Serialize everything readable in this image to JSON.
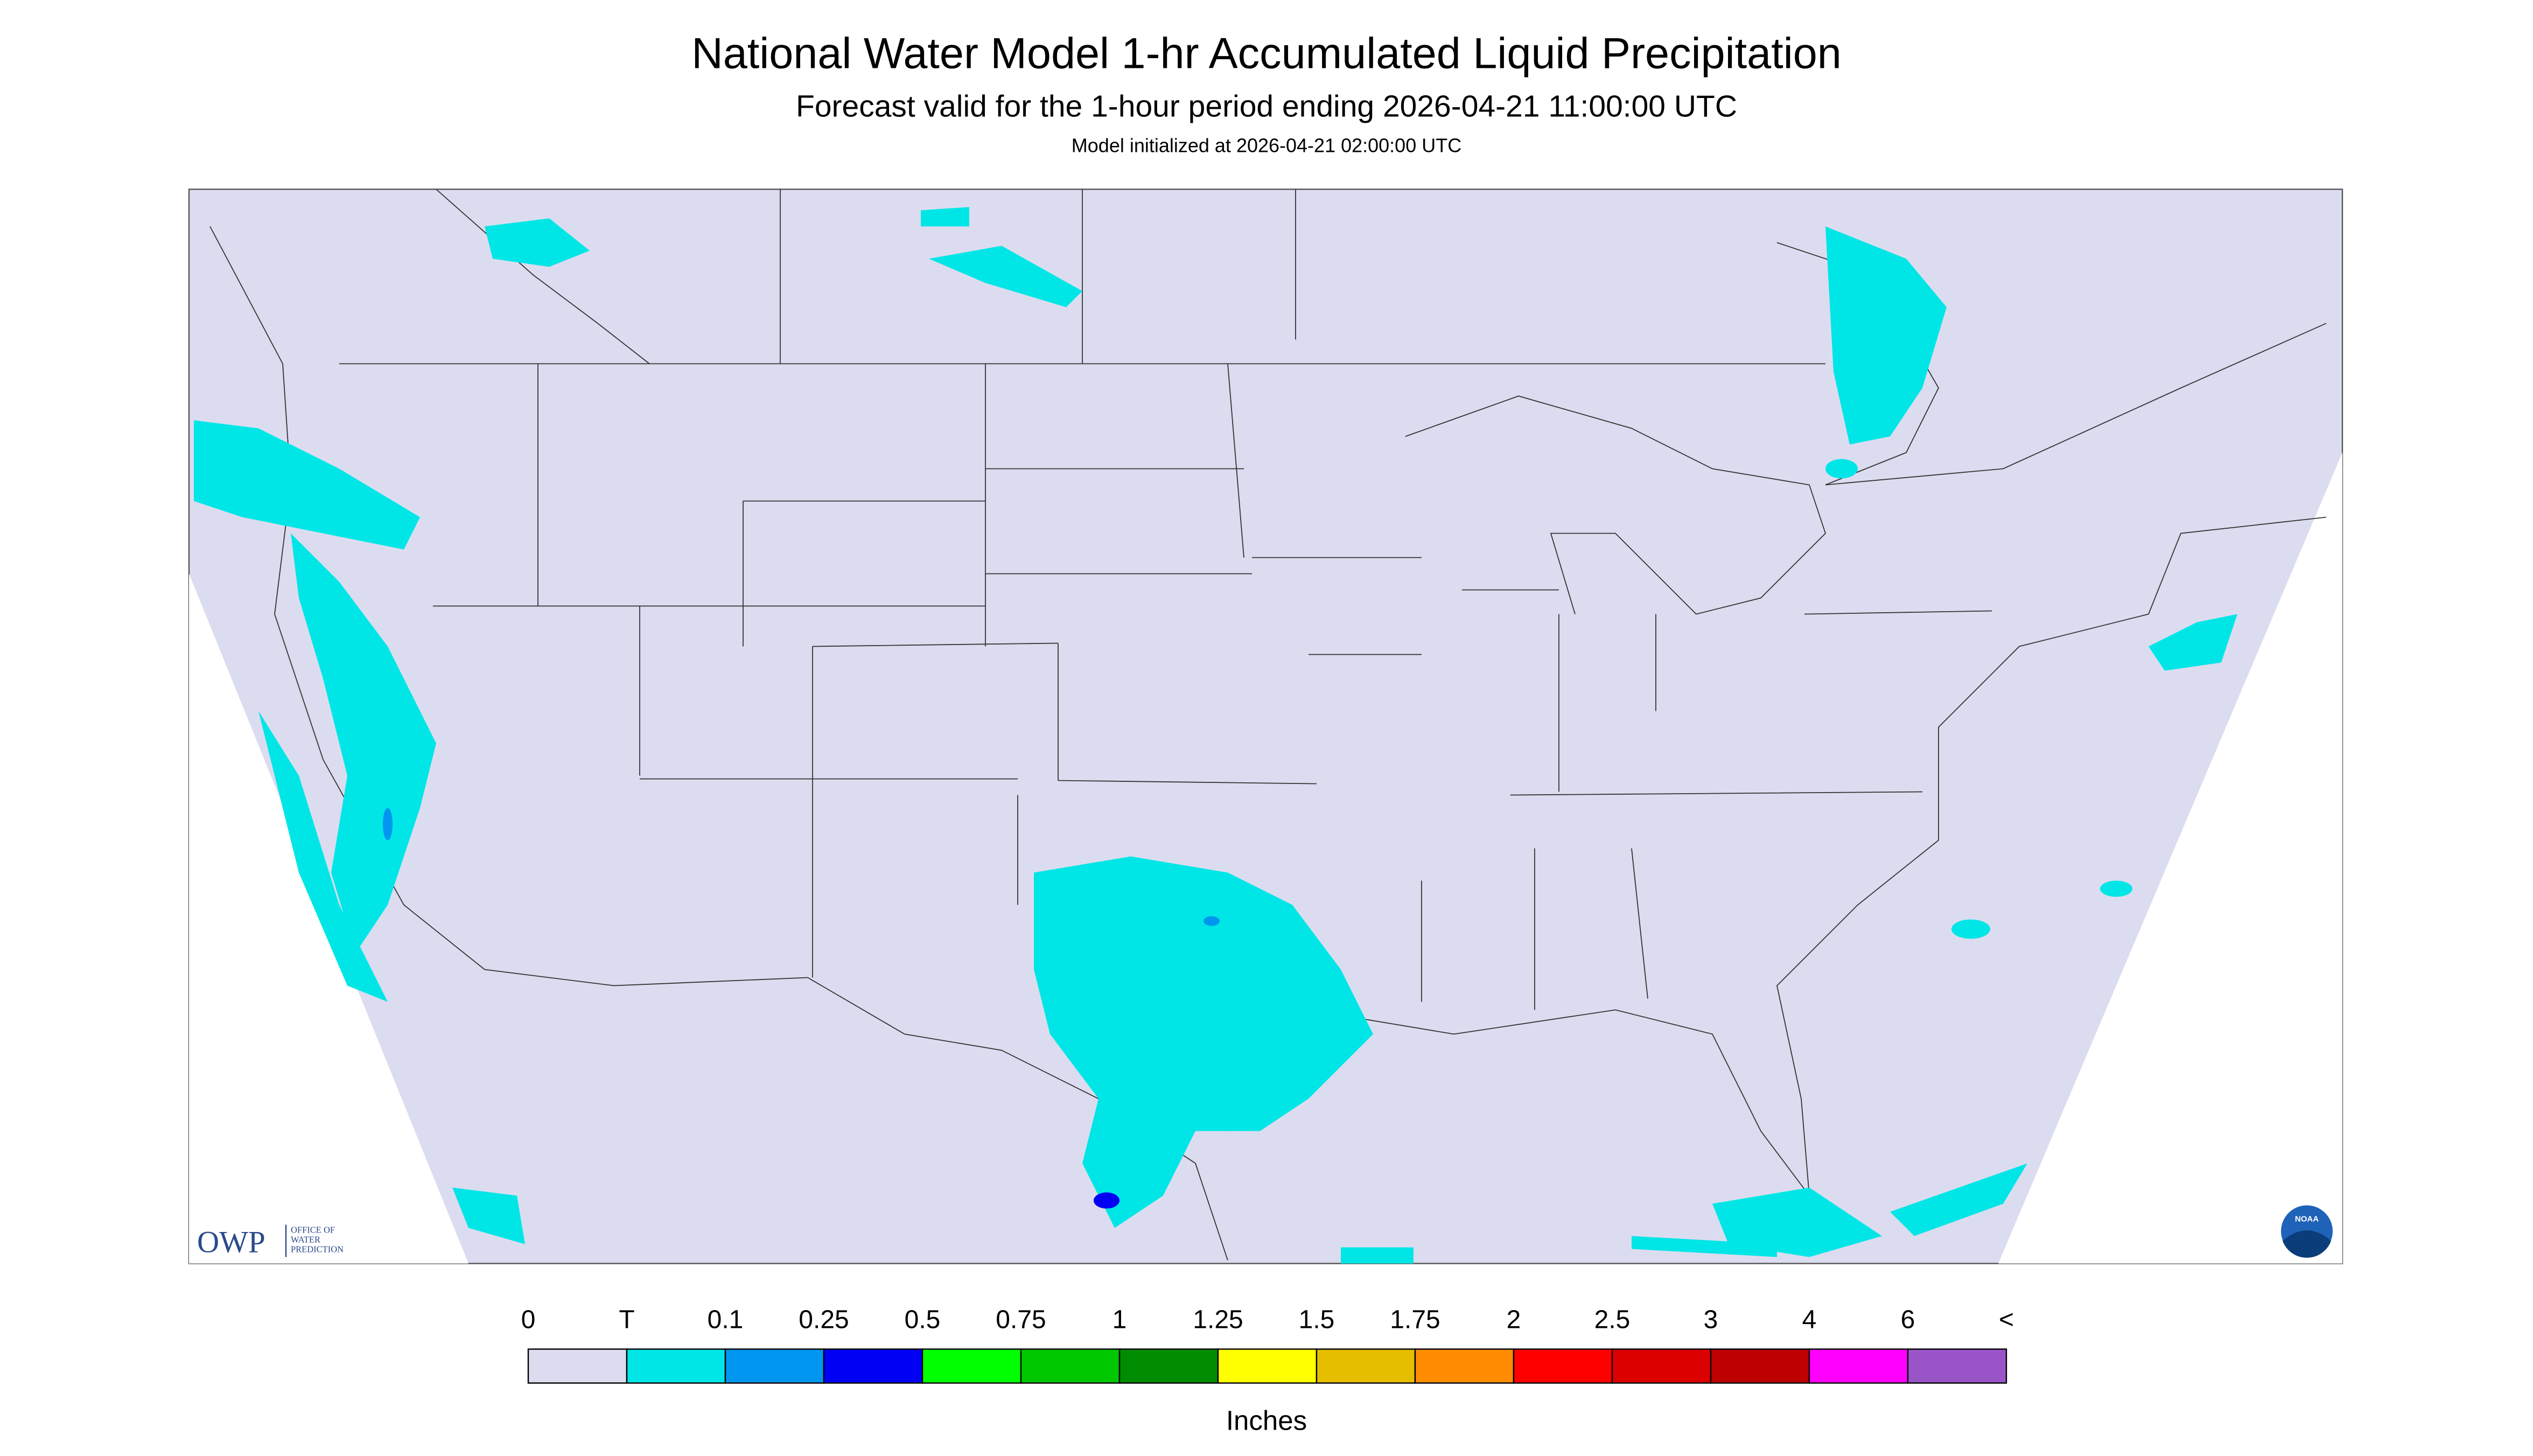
{
  "header": {
    "title": "National Water Model 1-hr Accumulated Liquid Precipitation",
    "subtitle": "Forecast valid for the 1-hour period ending 2026-04-21 11:00:00 UTC",
    "note": "Model initialized at 2026-04-21 02:00:00 UTC"
  },
  "logo": {
    "abbr": "OWP",
    "lines": [
      "OFFICE OF",
      "WATER",
      "PREDICTION"
    ],
    "noaa": "NOAA"
  },
  "legend": {
    "labels": [
      "0",
      "T",
      "0.1",
      "0.25",
      "0.5",
      "0.75",
      "1",
      "1.25",
      "1.5",
      "1.75",
      "2",
      "2.5",
      "3",
      "4",
      "6",
      "<"
    ],
    "colors": [
      "#dcdcf0",
      "#00e6e6",
      "#0096f0",
      "#0000f5",
      "#00ff00",
      "#00c800",
      "#008c00",
      "#ffff00",
      "#e6be00",
      "#ff8c00",
      "#ff0000",
      "#dc0000",
      "#be0000",
      "#ff00ff",
      "#9955c8"
    ],
    "units": "Inches"
  }
}
